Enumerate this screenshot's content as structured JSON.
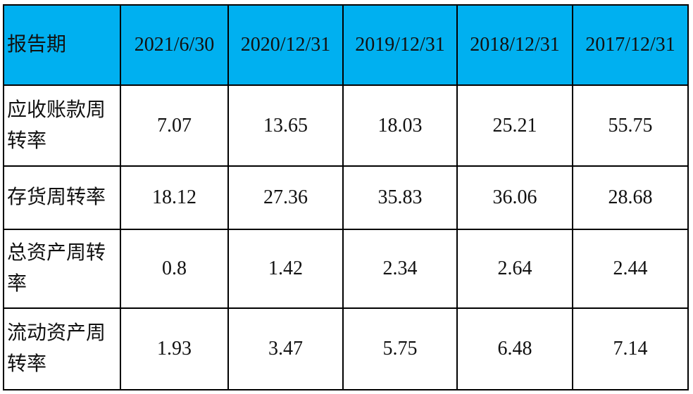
{
  "table": {
    "header": [
      "报告期",
      "2021/6/30",
      "2020/12/31",
      "2019/12/31",
      "2018/12/31",
      "2017/12/31"
    ],
    "rows": [
      [
        "应收账款周转率",
        "7.07",
        "13.65",
        "18.03",
        "25.21",
        "55.75"
      ],
      [
        "存货周转率",
        "18.12",
        "27.36",
        "35.83",
        "36.06",
        "28.68"
      ],
      [
        "总资产周转率",
        "0.8",
        "1.42",
        "2.34",
        "2.64",
        "2.44"
      ],
      [
        "流动资产周转率",
        "1.93",
        "3.47",
        "5.75",
        "6.48",
        "7.14"
      ]
    ]
  }
}
